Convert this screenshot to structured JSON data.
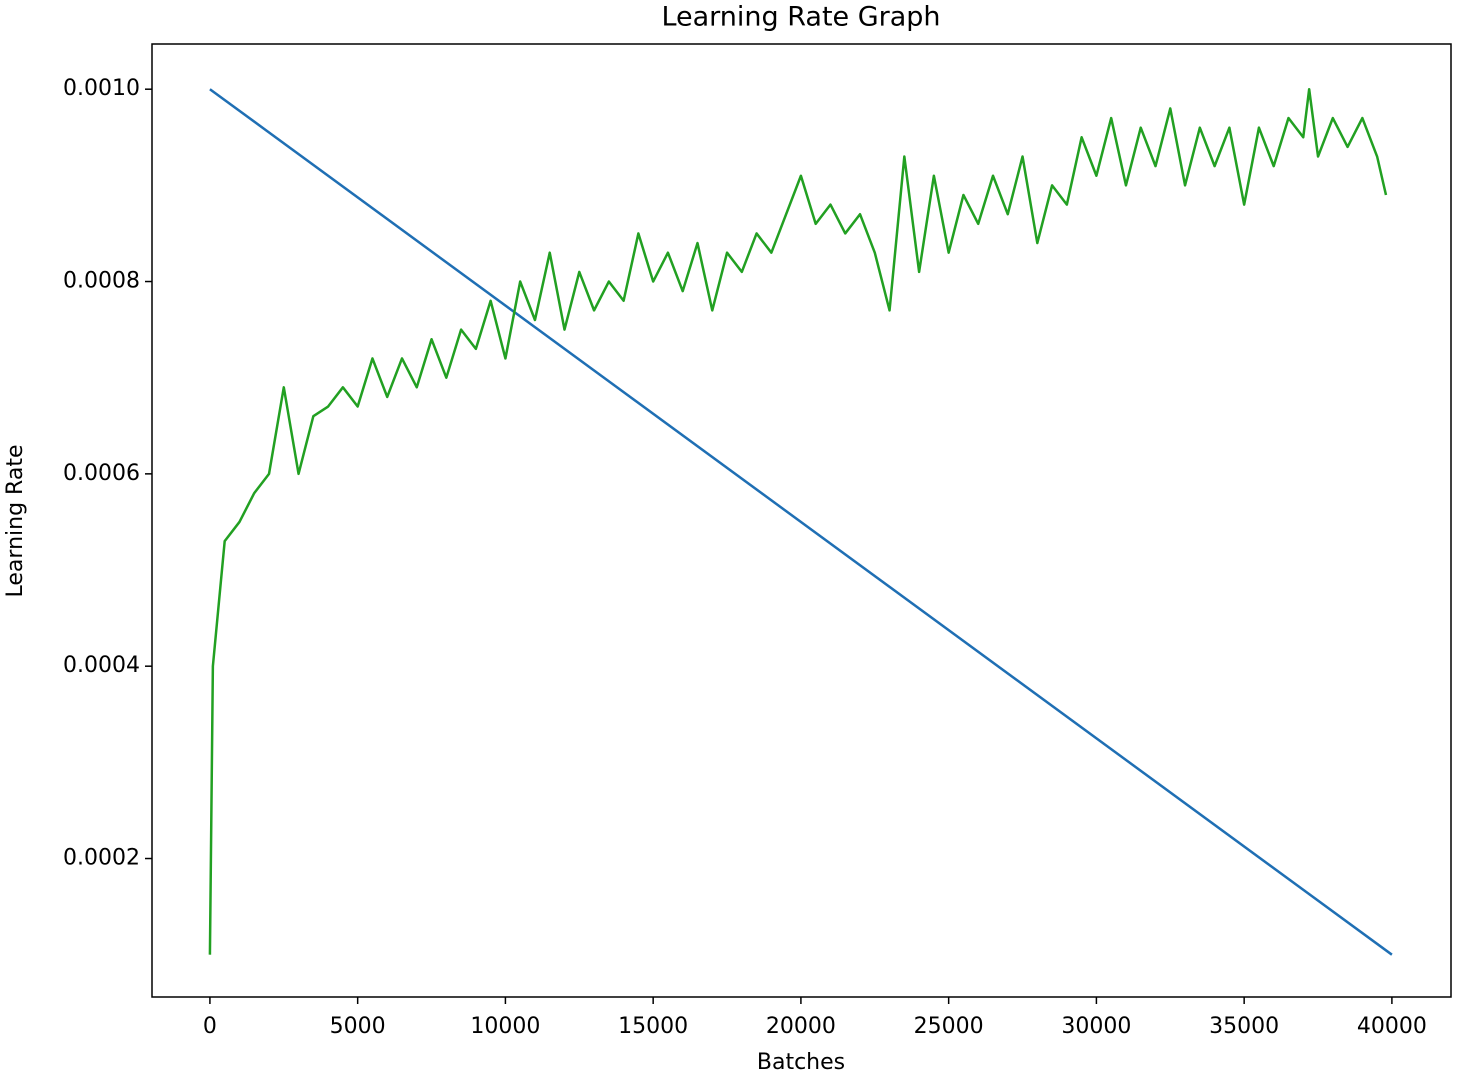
{
  "chart_data": {
    "type": "line",
    "title": "Learning Rate Graph",
    "xlabel": "Batches",
    "ylabel": "Learning Rate",
    "xlim": [
      -1960,
      42000
    ],
    "xticks": [
      0,
      5000,
      10000,
      15000,
      20000,
      25000,
      30000,
      35000,
      40000
    ],
    "ylim": [
      5.6e-05,
      0.001047
    ],
    "yticks": [
      0.0002,
      0.0004,
      0.0006,
      0.0008,
      {
        "value": 0.001,
        "label": "0.0010"
      }
    ],
    "grid": false,
    "series": [
      {
        "color": "#1f6fb4",
        "x": [
          0,
          40000
        ],
        "values": [
          0.001,
          0.0001
        ]
      },
      {
        "color": "#22a022",
        "x": [
          0,
          100,
          500,
          1000,
          1500,
          2000,
          2500,
          3000,
          3500,
          4000,
          4500,
          5000,
          5500,
          6000,
          6500,
          7000,
          7500,
          8000,
          8500,
          9000,
          9500,
          10000,
          10500,
          11000,
          11500,
          12000,
          12500,
          13000,
          13500,
          14000,
          14500,
          15000,
          15500,
          16000,
          16500,
          17000,
          17500,
          18000,
          18500,
          19000,
          19500,
          20000,
          20500,
          21000,
          21500,
          22000,
          22500,
          23000,
          23500,
          24000,
          24500,
          25000,
          25500,
          26000,
          26500,
          27000,
          27500,
          28000,
          28500,
          29000,
          29500,
          30000,
          30500,
          31000,
          31500,
          32000,
          32500,
          33000,
          33500,
          34000,
          34500,
          35000,
          35500,
          36000,
          36500,
          37000,
          37200,
          37500,
          38000,
          38500,
          39000,
          39500,
          39800
        ],
        "values": [
          0.0001,
          0.0004,
          0.00053,
          0.00055,
          0.00058,
          0.0006,
          0.00069,
          0.0006,
          0.00066,
          0.00067,
          0.00069,
          0.00067,
          0.00072,
          0.00068,
          0.00072,
          0.00069,
          0.00074,
          0.0007,
          0.00075,
          0.00073,
          0.00078,
          0.00072,
          0.0008,
          0.00076,
          0.00083,
          0.00075,
          0.00081,
          0.00077,
          0.0008,
          0.00078,
          0.00085,
          0.0008,
          0.00083,
          0.00079,
          0.00084,
          0.00077,
          0.00083,
          0.00081,
          0.00085,
          0.00083,
          0.00087,
          0.00091,
          0.00086,
          0.00088,
          0.00085,
          0.00087,
          0.00083,
          0.00077,
          0.00093,
          0.00081,
          0.00091,
          0.00083,
          0.00089,
          0.00086,
          0.00091,
          0.00087,
          0.00093,
          0.00084,
          0.0009,
          0.00088,
          0.00095,
          0.00091,
          0.00097,
          0.0009,
          0.00096,
          0.00092,
          0.00098,
          0.0009,
          0.00096,
          0.00092,
          0.00096,
          0.00088,
          0.00096,
          0.00092,
          0.00097,
          0.00095,
          0.001,
          0.00093,
          0.00097,
          0.00094,
          0.00097,
          0.00093,
          0.00089
        ]
      }
    ]
  }
}
